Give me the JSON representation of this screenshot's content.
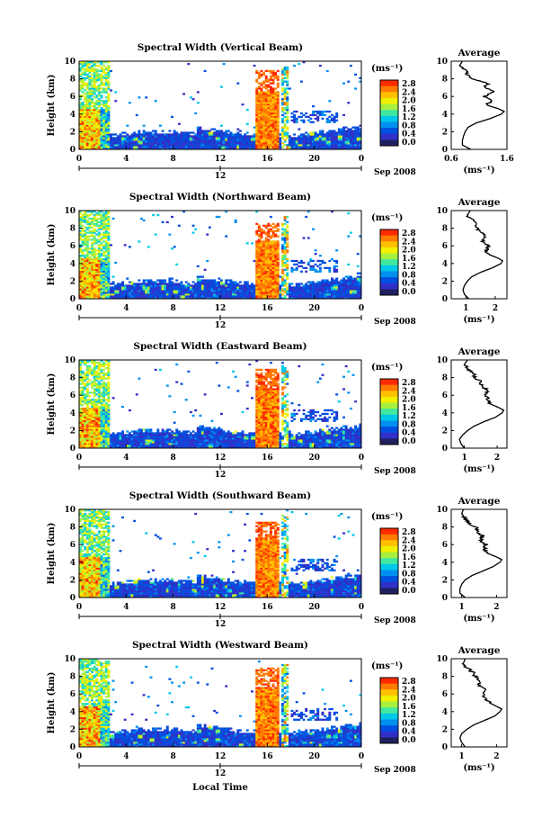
{
  "figure": {
    "xlabel": "Local Time",
    "ylabel": "Height (km)",
    "date_label": "Sep 2008",
    "avg_title": "Average",
    "unit_label": "(ms⁻¹)",
    "colorbar_ticks": [
      "2.8",
      "2.4",
      "2.0",
      "1.6",
      "1.2",
      "0.8",
      "0.4",
      "0.0"
    ],
    "colorbar_colors": [
      "#ff2a00",
      "#ff7a00",
      "#ffc000",
      "#f0f000",
      "#a8f040",
      "#40e8a0",
      "#00c8e8",
      "#0090f0",
      "#0050e0",
      "#3030c8",
      "#202060"
    ]
  },
  "chart_data": [
    {
      "type": "heatmap",
      "title": "Spectral Width (Vertical Beam)",
      "xlabel": "Local Time",
      "ylabel": "Height (km)",
      "xlim": [
        0,
        24
      ],
      "ylim": [
        0,
        10
      ],
      "xticks": [
        "0",
        "4",
        "8",
        "12",
        "16",
        "20",
        "0"
      ],
      "yticks": [
        "0",
        "2",
        "4",
        "6",
        "8",
        "10"
      ],
      "colorbar_range": [
        0.0,
        2.8
      ],
      "colorbar_ticks": [
        "2.8",
        "2.4",
        "2.0",
        "1.6",
        "1.2",
        "0.8",
        "0.4",
        "0.0"
      ],
      "average": {
        "title": "Average",
        "xlabel": "(ms⁻¹)",
        "xlim": [
          0.6,
          1.6
        ],
        "xticks": [
          "0.6",
          "1.6"
        ],
        "height": [
          0,
          0.5,
          1,
          1.5,
          2,
          2.5,
          3,
          3.5,
          4,
          4.3,
          4.6,
          5,
          5.5,
          6,
          6.5,
          7,
          7.5,
          8,
          8.5,
          9,
          9.5,
          10
        ],
        "values": [
          0.95,
          0.8,
          0.8,
          0.82,
          0.85,
          0.9,
          1.05,
          1.3,
          1.5,
          1.55,
          1.45,
          1.25,
          1.3,
          1.2,
          1.35,
          1.2,
          1.25,
          1.0,
          0.9,
          0.85,
          0.75,
          0.8
        ]
      }
    },
    {
      "type": "heatmap",
      "title": "Spectral Width (Northward Beam)",
      "xlabel": "Local Time",
      "ylabel": "Height (km)",
      "xlim": [
        0,
        24
      ],
      "ylim": [
        0,
        10
      ],
      "xticks": [
        "0",
        "4",
        "8",
        "12",
        "16",
        "20",
        "0"
      ],
      "yticks": [
        "0",
        "2",
        "4",
        "6",
        "8",
        "10"
      ],
      "colorbar_range": [
        0.0,
        2.8
      ],
      "colorbar_ticks": [
        "2.8",
        "2.4",
        "2.0",
        "1.6",
        "1.2",
        "0.8",
        "0.4",
        "0.0"
      ],
      "average": {
        "title": "Average",
        "xlabel": "(ms⁻¹)",
        "xlim": [
          0.5,
          2.4
        ],
        "xticks": [
          "1",
          "2"
        ],
        "height": [
          0,
          0.5,
          1,
          1.5,
          2,
          2.5,
          3,
          3.5,
          4,
          4.3,
          4.6,
          5,
          5.5,
          6,
          6.5,
          7,
          7.5,
          8,
          8.5,
          9,
          9.5,
          10
        ],
        "values": [
          1.1,
          0.95,
          0.9,
          0.95,
          1.05,
          1.2,
          1.5,
          1.9,
          2.2,
          2.25,
          2.1,
          1.8,
          1.7,
          1.75,
          1.6,
          1.7,
          1.5,
          1.4,
          1.3,
          1.2,
          1.05,
          1.15
        ]
      }
    },
    {
      "type": "heatmap",
      "title": "Spectral Width (Eastward Beam)",
      "xlabel": "Local Time",
      "ylabel": "Height (km)",
      "xlim": [
        0,
        24
      ],
      "ylim": [
        0,
        10
      ],
      "xticks": [
        "0",
        "4",
        "8",
        "12",
        "16",
        "20",
        "0"
      ],
      "yticks": [
        "0",
        "2",
        "4",
        "6",
        "8",
        "10"
      ],
      "colorbar_range": [
        0.0,
        2.8
      ],
      "colorbar_ticks": [
        "2.8",
        "2.4",
        "2.0",
        "1.6",
        "1.2",
        "0.8",
        "0.4",
        "0.0"
      ],
      "average": {
        "title": "Average",
        "xlabel": "(ms⁻¹)",
        "xlim": [
          0.6,
          2.3
        ],
        "xticks": [
          "1",
          "2"
        ],
        "height": [
          0,
          0.5,
          1,
          1.5,
          2,
          2.5,
          3,
          3.5,
          4,
          4.3,
          4.6,
          5,
          5.5,
          6,
          6.5,
          7,
          7.5,
          8,
          8.5,
          9,
          9.5,
          10
        ],
        "values": [
          1.0,
          0.9,
          0.85,
          0.95,
          1.1,
          1.3,
          1.6,
          1.95,
          2.15,
          2.2,
          2.05,
          1.8,
          1.75,
          1.6,
          1.7,
          1.55,
          1.5,
          1.35,
          1.25,
          1.1,
          1.0,
          1.1
        ]
      }
    },
    {
      "type": "heatmap",
      "title": "Spectral Width (Southward Beam)",
      "xlabel": "Local Time",
      "ylabel": "Height (km)",
      "xlim": [
        0,
        24
      ],
      "ylim": [
        0,
        10
      ],
      "xticks": [
        "0",
        "4",
        "8",
        "12",
        "16",
        "20",
        "0"
      ],
      "yticks": [
        "0",
        "2",
        "4",
        "6",
        "8",
        "10"
      ],
      "colorbar_range": [
        0.0,
        2.8
      ],
      "colorbar_ticks": [
        "2.8",
        "2.4",
        "2.0",
        "1.6",
        "1.2",
        "0.8",
        "0.4",
        "0.0"
      ],
      "average": {
        "title": "Average",
        "xlabel": "(ms⁻¹)",
        "xlim": [
          0.7,
          2.3
        ],
        "xticks": [
          "1",
          "2"
        ],
        "height": [
          0,
          0.5,
          1,
          1.5,
          2,
          2.5,
          3,
          3.5,
          4,
          4.3,
          4.6,
          5,
          5.5,
          6,
          6.5,
          7,
          7.5,
          8,
          8.5,
          9,
          9.5,
          10
        ],
        "values": [
          1.1,
          0.95,
          0.95,
          1.0,
          1.1,
          1.3,
          1.6,
          1.9,
          2.1,
          2.15,
          2.0,
          1.75,
          1.65,
          1.7,
          1.55,
          1.6,
          1.45,
          1.4,
          1.2,
          1.1,
          1.0,
          1.05
        ]
      }
    },
    {
      "type": "heatmap",
      "title": "Spectral Width (Westward Beam)",
      "xlabel": "Local Time",
      "ylabel": "Height (km)",
      "xlim": [
        0,
        24
      ],
      "ylim": [
        0,
        10
      ],
      "xticks": [
        "0",
        "4",
        "8",
        "12",
        "16",
        "20",
        "0"
      ],
      "yticks": [
        "0",
        "2",
        "4",
        "6",
        "8",
        "10"
      ],
      "colorbar_range": [
        0.0,
        2.8
      ],
      "colorbar_ticks": [
        "2.8",
        "2.4",
        "2.0",
        "1.6",
        "1.2",
        "0.8",
        "0.4",
        "0.0"
      ],
      "average": {
        "title": "Average",
        "xlabel": "(ms⁻¹)",
        "xlim": [
          0.7,
          2.3
        ],
        "xticks": [
          "1",
          "2"
        ],
        "height": [
          0,
          0.5,
          1,
          1.5,
          2,
          2.5,
          3,
          3.5,
          4,
          4.3,
          4.6,
          5,
          5.5,
          6,
          6.5,
          7,
          7.5,
          8,
          8.5,
          9,
          9.5,
          10
        ],
        "values": [
          1.1,
          1.0,
          0.95,
          1.0,
          1.15,
          1.35,
          1.65,
          1.95,
          2.1,
          2.15,
          2.0,
          1.8,
          1.7,
          1.6,
          1.7,
          1.5,
          1.55,
          1.4,
          1.3,
          1.15,
          1.05,
          1.1
        ]
      }
    }
  ]
}
